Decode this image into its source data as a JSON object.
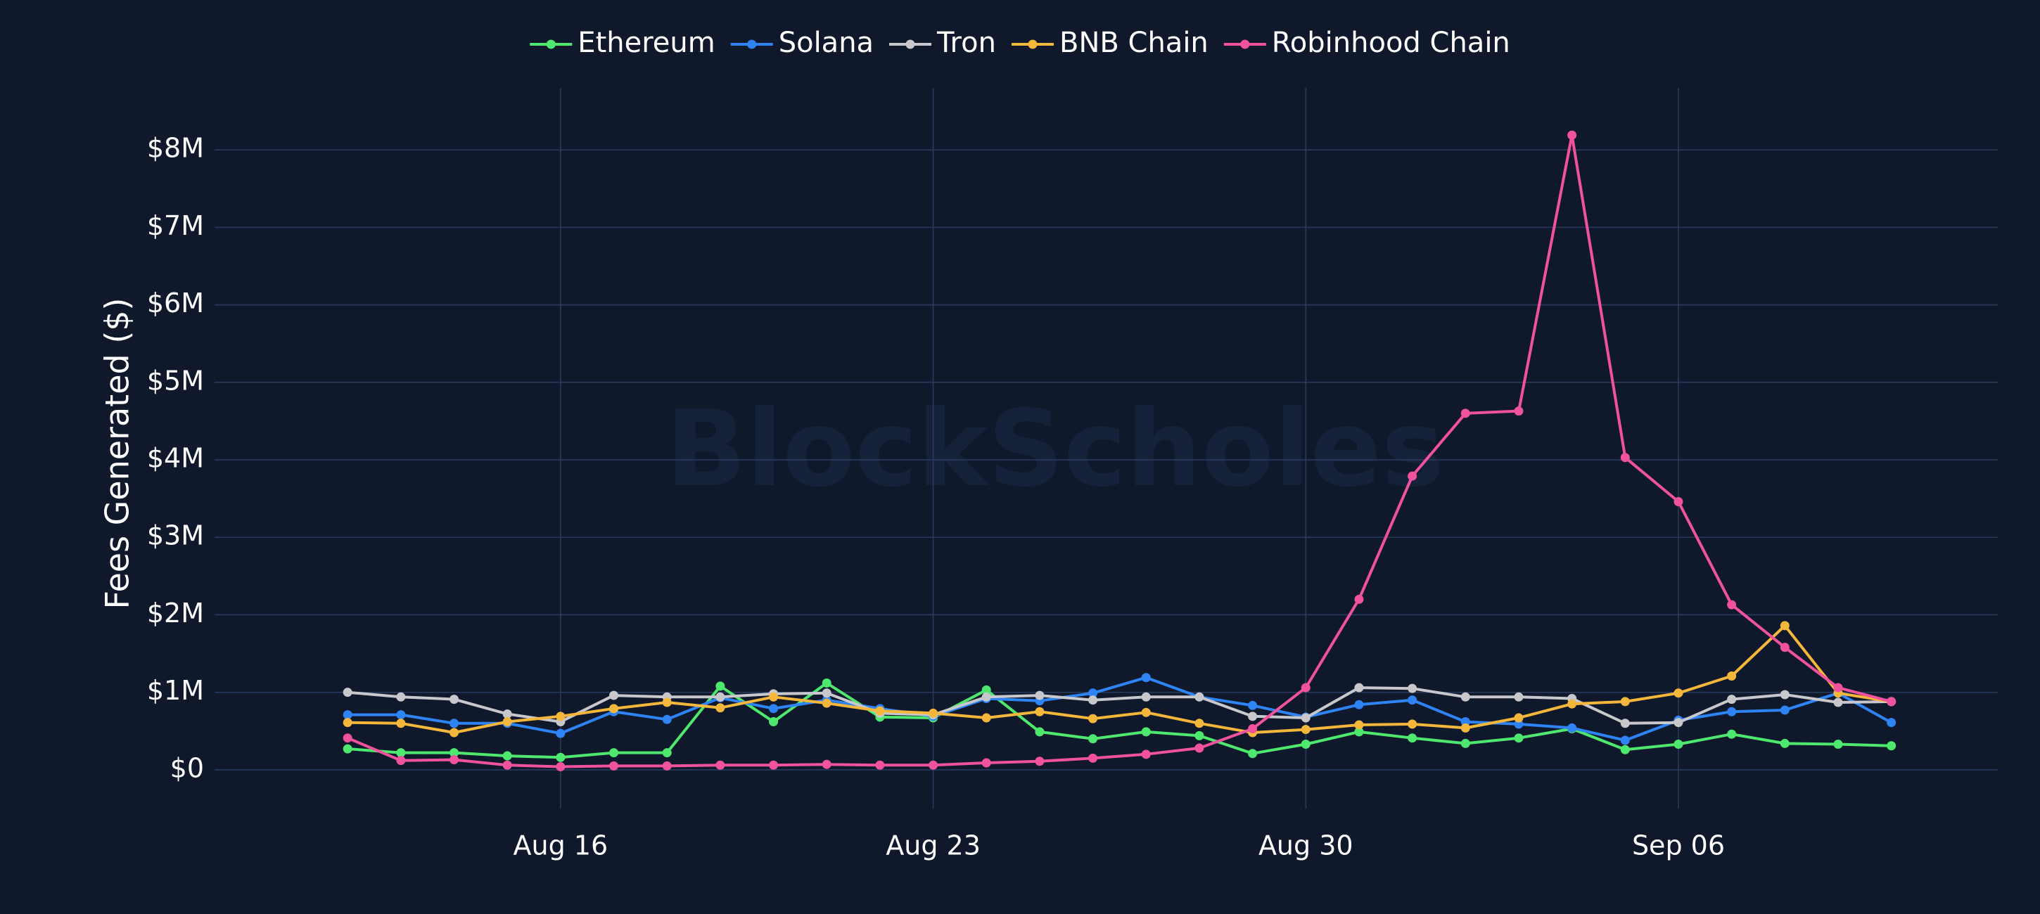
{
  "watermark": "BlockScholes",
  "chart_data": {
    "type": "line",
    "ylabel": "Fees Generated ($)",
    "xlabel": "",
    "ylim": [
      -500000,
      8800000
    ],
    "xlim": [
      "2025-08-09T12:00",
      "2025-09-12T00:00"
    ],
    "x": [
      "2025-08-12",
      "2025-08-13",
      "2025-08-14",
      "2025-08-15",
      "2025-08-16",
      "2025-08-17",
      "2025-08-18",
      "2025-08-19",
      "2025-08-20",
      "2025-08-21",
      "2025-08-22",
      "2025-08-23",
      "2025-08-24",
      "2025-08-25",
      "2025-08-26",
      "2025-08-27",
      "2025-08-28",
      "2025-08-29",
      "2025-08-30",
      "2025-08-31",
      "2025-09-01",
      "2025-09-02",
      "2025-09-03",
      "2025-09-04",
      "2025-09-05",
      "2025-09-06",
      "2025-09-07",
      "2025-09-08",
      "2025-09-09",
      "2025-09-10"
    ],
    "x_ticks": [
      {
        "value": "2025-08-16",
        "label": "Aug 16"
      },
      {
        "value": "2025-08-23",
        "label": "Aug 23"
      },
      {
        "value": "2025-08-30",
        "label": "Aug 30"
      },
      {
        "value": "2025-09-06",
        "label": "Sep 06"
      }
    ],
    "y_ticks": [
      {
        "value": 0,
        "label": "$0"
      },
      {
        "value": 1000000,
        "label": "$1M"
      },
      {
        "value": 2000000,
        "label": "$2M"
      },
      {
        "value": 3000000,
        "label": "$3M"
      },
      {
        "value": 4000000,
        "label": "$4M"
      },
      {
        "value": 5000000,
        "label": "$5M"
      },
      {
        "value": 6000000,
        "label": "$6M"
      },
      {
        "value": 7000000,
        "label": "$7M"
      },
      {
        "value": 8000000,
        "label": "$8M"
      }
    ],
    "grid": true,
    "legend_position": "top-center",
    "series": [
      {
        "name": "Ethereum",
        "color": "#4ee86f",
        "values": [
          270000,
          220000,
          220000,
          180000,
          160000,
          220000,
          220000,
          1080000,
          620000,
          1120000,
          680000,
          670000,
          1030000,
          490000,
          400000,
          490000,
          440000,
          210000,
          330000,
          490000,
          410000,
          340000,
          410000,
          530000,
          260000,
          330000,
          460000,
          340000,
          330000,
          310000
        ]
      },
      {
        "name": "Solana",
        "color": "#2e83f5",
        "values": [
          710000,
          710000,
          600000,
          600000,
          470000,
          750000,
          650000,
          930000,
          790000,
          900000,
          790000,
          690000,
          920000,
          890000,
          990000,
          1190000,
          940000,
          830000,
          680000,
          840000,
          900000,
          620000,
          590000,
          540000,
          380000,
          640000,
          750000,
          770000,
          990000,
          610000
        ]
      },
      {
        "name": "Tron",
        "color": "#c8c8cc",
        "values": [
          1000000,
          940000,
          910000,
          720000,
          620000,
          960000,
          940000,
          940000,
          980000,
          990000,
          730000,
          710000,
          940000,
          960000,
          900000,
          940000,
          940000,
          690000,
          670000,
          1060000,
          1050000,
          940000,
          940000,
          920000,
          600000,
          610000,
          910000,
          970000,
          870000,
          880000
        ]
      },
      {
        "name": "BNB Chain",
        "color": "#f5b73b",
        "values": [
          610000,
          600000,
          480000,
          620000,
          690000,
          790000,
          870000,
          800000,
          940000,
          860000,
          760000,
          730000,
          670000,
          750000,
          660000,
          740000,
          600000,
          480000,
          520000,
          580000,
          590000,
          540000,
          670000,
          850000,
          880000,
          990000,
          1210000,
          1860000,
          990000,
          880000
        ]
      },
      {
        "name": "Robinhood Chain",
        "color": "#f0529e",
        "values": [
          410000,
          120000,
          130000,
          60000,
          40000,
          50000,
          50000,
          60000,
          60000,
          70000,
          60000,
          60000,
          90000,
          110000,
          150000,
          200000,
          280000,
          530000,
          1060000,
          2200000,
          3790000,
          4600000,
          4630000,
          8190000,
          4030000,
          3460000,
          2130000,
          1580000,
          1060000,
          880000
        ]
      }
    ]
  }
}
